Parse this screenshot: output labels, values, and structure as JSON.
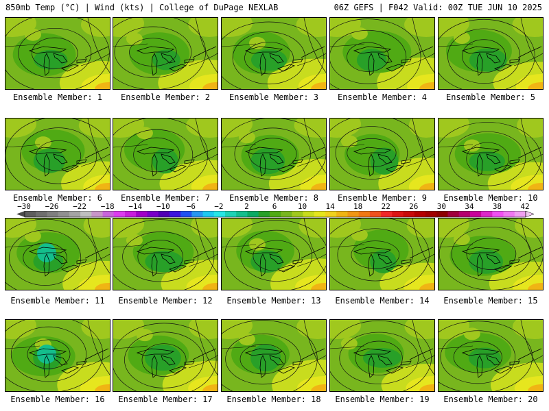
{
  "header": {
    "title_left": "850mb Temp (°C) | Wind (kts) | College of DuPage NEXLAB",
    "title_right": "06Z GEFS | F042 Valid: 00Z TUE JUN 10 2025"
  },
  "panels": [
    {
      "member": 1,
      "label": "Ensemble Member: 1"
    },
    {
      "member": 2,
      "label": "Ensemble Member: 2"
    },
    {
      "member": 3,
      "label": "Ensemble Member: 3"
    },
    {
      "member": 4,
      "label": "Ensemble Member: 4"
    },
    {
      "member": 5,
      "label": "Ensemble Member: 5"
    },
    {
      "member": 6,
      "label": "Ensemble Member: 6"
    },
    {
      "member": 7,
      "label": "Ensemble Member: 7"
    },
    {
      "member": 8,
      "label": "Ensemble Member: 8"
    },
    {
      "member": 9,
      "label": "Ensemble Member: 9"
    },
    {
      "member": 10,
      "label": "Ensemble Member: 10"
    },
    {
      "member": 11,
      "label": "Ensemble Member: 11"
    },
    {
      "member": 12,
      "label": "Ensemble Member: 12"
    },
    {
      "member": 13,
      "label": "Ensemble Member: 13"
    },
    {
      "member": 14,
      "label": "Ensemble Member: 14"
    },
    {
      "member": 15,
      "label": "Ensemble Member: 15"
    },
    {
      "member": 16,
      "label": "Ensemble Member: 16"
    },
    {
      "member": 17,
      "label": "Ensemble Member: 17"
    },
    {
      "member": 18,
      "label": "Ensemble Member: 18"
    },
    {
      "member": 19,
      "label": "Ensemble Member: 19"
    },
    {
      "member": 20,
      "label": "Ensemble Member: 20"
    }
  ],
  "colorbar": {
    "tick_labels": [
      "−30",
      "−26",
      "−22",
      "−18",
      "−14",
      "−10",
      "−6",
      "−2",
      "2",
      "6",
      "10",
      "14",
      "18",
      "22",
      "26",
      "30",
      "34",
      "38",
      "42"
    ],
    "colors": [
      "#5d5d5d",
      "#6e6e6e",
      "#7f7f7f",
      "#909090",
      "#a4a4a4",
      "#bfbfbf",
      "#c896c8",
      "#c864dc",
      "#dc3cf0",
      "#c81edc",
      "#a000c8",
      "#7800c8",
      "#5000b4",
      "#3c14dc",
      "#2050f0",
      "#2896f0",
      "#1ec8f0",
      "#28e6e6",
      "#1ed2b4",
      "#14be8c",
      "#0aaa64",
      "#28a028",
      "#50aa14",
      "#78b61e",
      "#a0c81e",
      "#c8dc1e",
      "#e6e61e",
      "#f0d21e",
      "#f0b414",
      "#f09614",
      "#f07814",
      "#f0501e",
      "#f02828",
      "#dc1414",
      "#c80a0a",
      "#b40000",
      "#a00000",
      "#8c0000",
      "#a0003c",
      "#b4006e",
      "#c8009b",
      "#dc28c8",
      "#f050f0",
      "#f078f0",
      "#f0a0f0"
    ]
  }
}
